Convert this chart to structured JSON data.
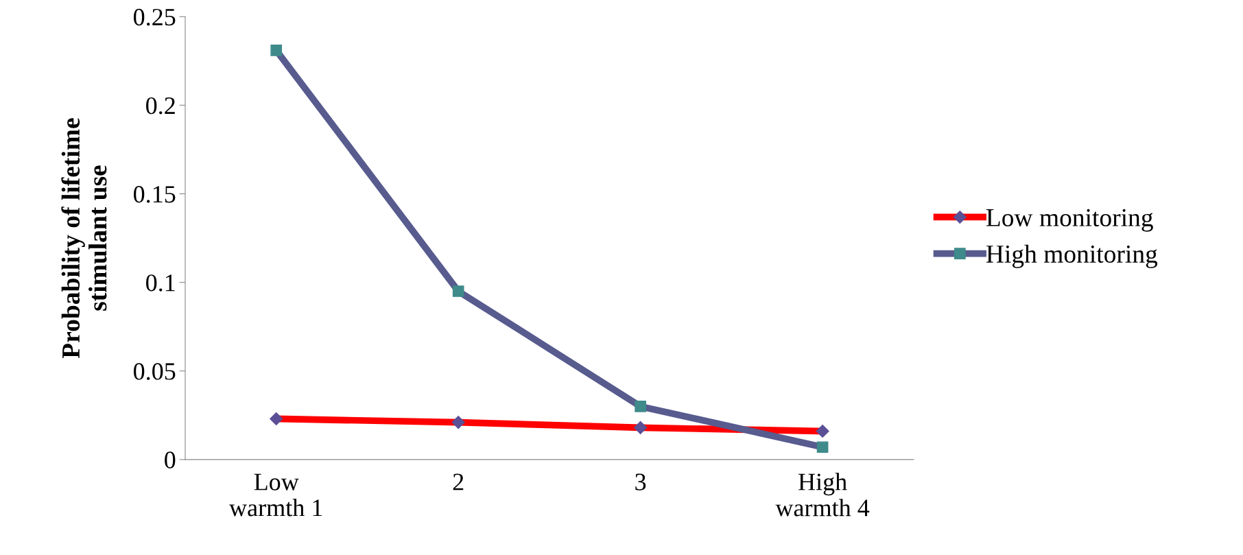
{
  "chart_data": {
    "type": "line",
    "ylabel": "Probability of lifetime\nstimulant use",
    "categories": [
      "Low\nwarmth 1",
      "2",
      "3",
      "High\nwarmth 4"
    ],
    "series": [
      {
        "name": "Low monitoring",
        "color": "#ff0000",
        "marker": "diamond",
        "values": [
          0.023,
          0.021,
          0.018,
          0.016
        ]
      },
      {
        "name": "High monitoring",
        "color": "#575b8e",
        "marker": "square",
        "values": [
          0.231,
          0.095,
          0.03,
          0.007
        ]
      }
    ],
    "ylim": [
      0,
      0.25
    ],
    "yticks": [
      0,
      0.05,
      0.1,
      0.15,
      0.2,
      0.25
    ],
    "grid": false,
    "legend": "right"
  }
}
